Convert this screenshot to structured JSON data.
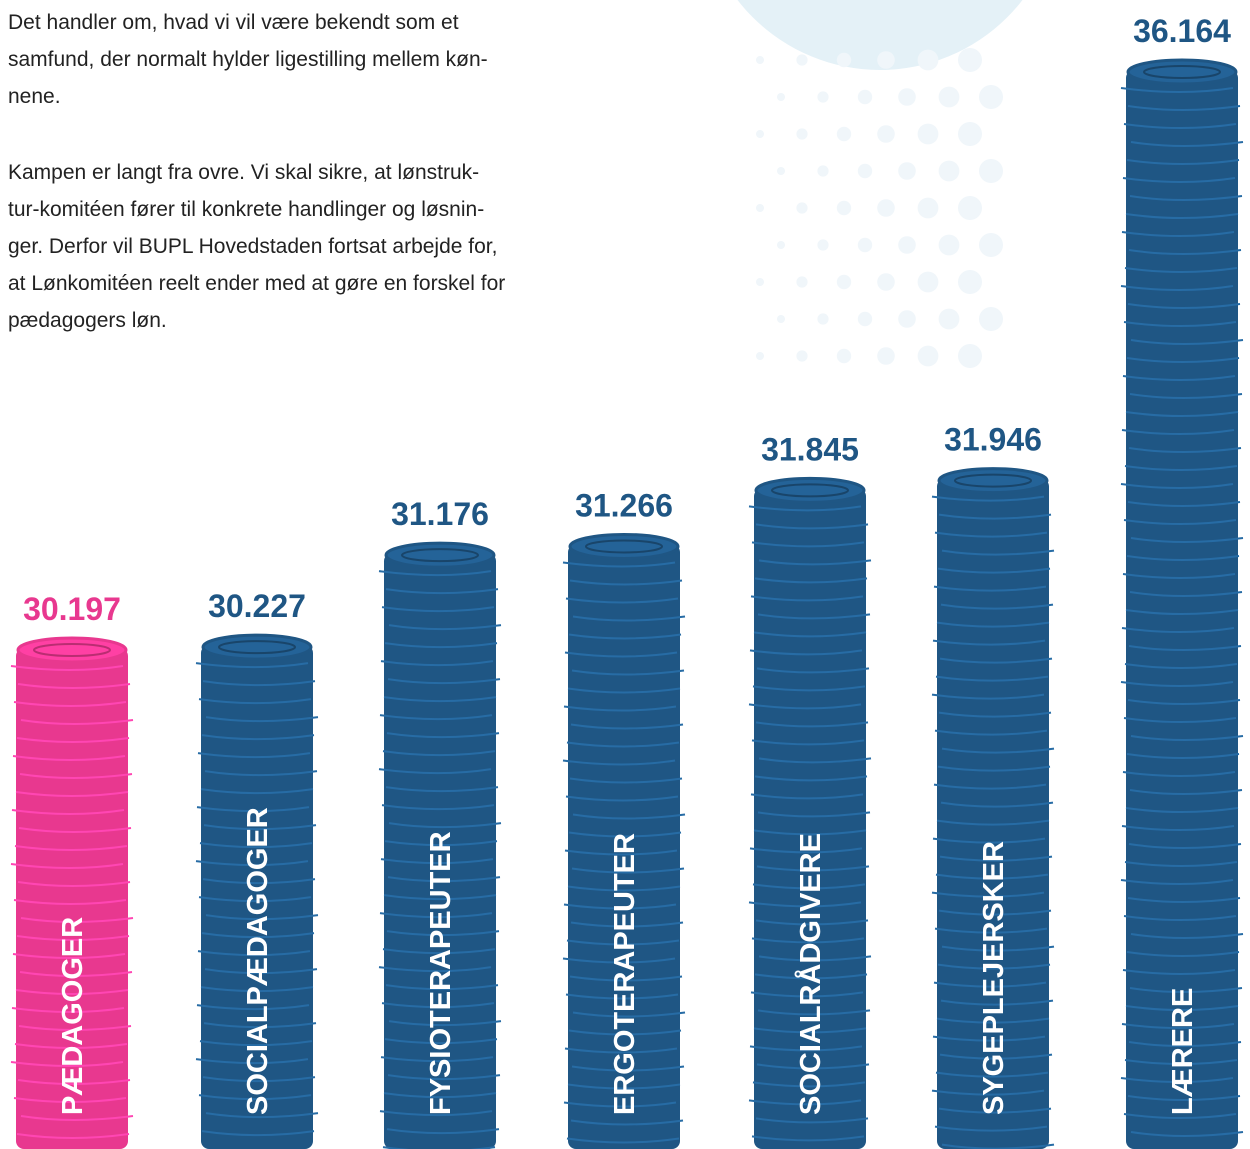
{
  "text": {
    "paragraphs": [
      [
        "Det handler om, hvad vi vil være bekendt som et",
        "samfund, der normalt hylder ligestilling mellem køn-",
        "nene."
      ],
      [
        "Kampen er langt fra ovre. Vi skal sikre, at lønstruk-",
        "tur-komitéen fører til konkrete handlinger og løsnin-",
        "ger. Derfor vil BUPL Hovedstaden fortsat arbejde for,",
        "at Lønkomitéen reelt ender med at gøre en forskel for",
        "pædagogers løn."
      ]
    ]
  },
  "chart_data": {
    "type": "bar",
    "categories": [
      "PÆDAGOGER",
      "SOCIALPÆDAGOGER",
      "FYSIOTERAPEUTER",
      "ERGOTERAPEUTER",
      "SOCIALRÅDGIVERE",
      "SYGEPLEJERSKER",
      "LÆRERE"
    ],
    "values": [
      30197,
      30227,
      31176,
      31266,
      31845,
      31946,
      36164
    ],
    "value_labels": [
      "30.197",
      "30.227",
      "31.176",
      "31.266",
      "31.845",
      "31.946",
      "36.164"
    ],
    "colors": [
      "#e8388f",
      "#1f5684",
      "#1f5684",
      "#1f5684",
      "#1f5684",
      "#1f5684",
      "#1f5684"
    ]
  }
}
